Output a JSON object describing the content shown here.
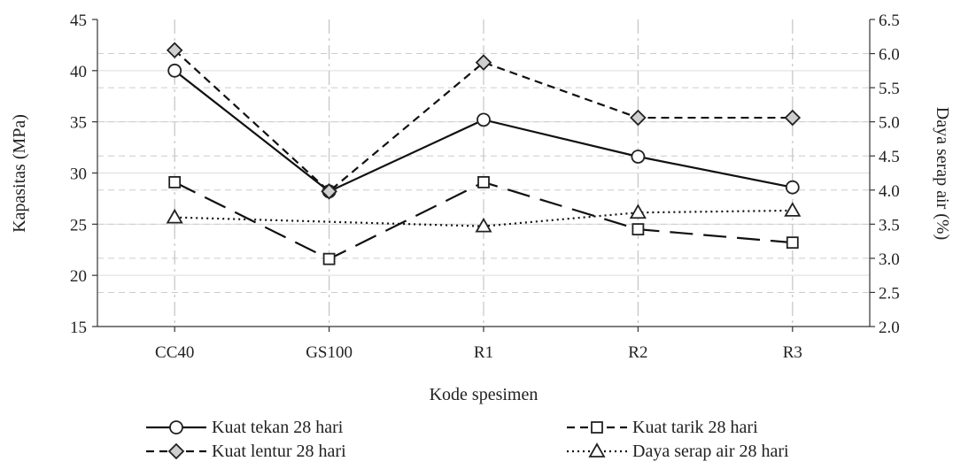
{
  "chart_data": {
    "type": "line",
    "categories": [
      "CC40",
      "GS100",
      "R1",
      "R2",
      "R3"
    ],
    "xlabel": "Kode spesimen",
    "ylabel": "Kapasitas (MPa)",
    "y2label": "Daya serap air (%)",
    "ylim": [
      15,
      45
    ],
    "y2lim": [
      2.0,
      6.5
    ],
    "yticks": [
      "15",
      "20",
      "25",
      "30",
      "35",
      "40",
      "45"
    ],
    "y2ticks": [
      "2.0",
      "2.5",
      "3.0",
      "3.5",
      "4.0",
      "4.5",
      "5.0",
      "5.5",
      "6.0",
      "6.5"
    ],
    "grid": true,
    "legend_position": "bottom",
    "series": [
      {
        "name": "Kuat tekan 28 hari",
        "axis": "left",
        "marker": "circle",
        "line": "solid",
        "color": "#111111",
        "values": [
          40.0,
          28.2,
          35.2,
          31.6,
          28.6
        ]
      },
      {
        "name": "Kuat tarik 28 hari",
        "axis": "left",
        "marker": "square",
        "line": "longdash",
        "color": "#111111",
        "values": [
          29.1,
          21.6,
          29.1,
          24.5,
          23.2
        ]
      },
      {
        "name": "Kuat lentur 28 hari",
        "axis": "left",
        "marker": "diamond",
        "line": "dash",
        "color": "#111111",
        "values": [
          42.0,
          28.2,
          40.8,
          35.4,
          35.4
        ]
      },
      {
        "name": "Daya serap air 28 hari",
        "axis": "right",
        "marker": "triangle",
        "line": "dotted",
        "color": "#111111",
        "values": [
          3.6,
          null,
          3.47,
          3.67,
          3.7
        ]
      }
    ]
  }
}
